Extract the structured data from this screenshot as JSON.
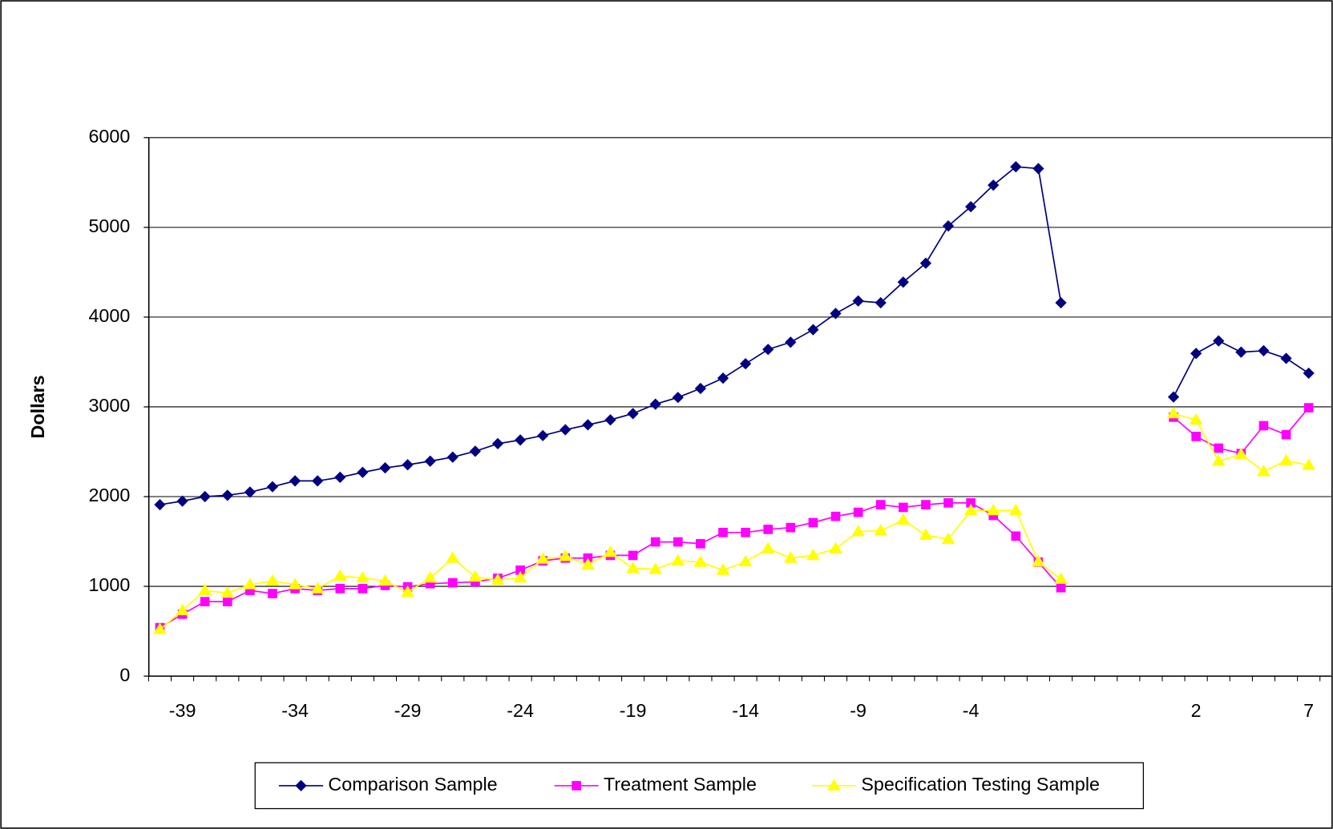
{
  "chart_data": {
    "type": "line",
    "y_label": "Dollars",
    "categories": [
      null,
      -39,
      null,
      null,
      null,
      null,
      -34,
      null,
      null,
      null,
      null,
      -29,
      null,
      null,
      null,
      null,
      -24,
      null,
      null,
      null,
      null,
      -19,
      null,
      null,
      null,
      null,
      -14,
      null,
      null,
      null,
      null,
      -9,
      null,
      null,
      null,
      null,
      -4,
      null,
      null,
      null,
      null,
      null,
      null,
      null,
      null,
      null,
      2,
      null,
      null,
      null,
      null,
      7
    ],
    "series": [
      {
        "name": "Comparison Sample",
        "color": "#000080",
        "marker": "diamond",
        "values": [
          1910,
          1950,
          2000,
          2015,
          2050,
          2110,
          2175,
          2175,
          2215,
          2270,
          2320,
          2355,
          2395,
          2440,
          2505,
          2590,
          2630,
          2680,
          2745,
          2800,
          2855,
          2925,
          3030,
          3105,
          3205,
          3320,
          3480,
          3640,
          3720,
          3860,
          4040,
          4180,
          4160,
          4390,
          4600,
          5015,
          5230,
          5470,
          5675,
          5655,
          4160,
          null,
          null,
          null,
          null,
          3110,
          3595,
          3735,
          3610,
          3625,
          3540,
          3375
        ]
      },
      {
        "name": "Treatment Sample",
        "color": "#ff00ff",
        "marker": "square",
        "values": [
          540,
          690,
          830,
          830,
          955,
          920,
          975,
          955,
          975,
          975,
          1010,
          995,
          1030,
          1040,
          1050,
          1090,
          1180,
          1285,
          1315,
          1315,
          1345,
          1345,
          1495,
          1495,
          1475,
          1600,
          1600,
          1635,
          1655,
          1710,
          1780,
          1825,
          1910,
          1880,
          1910,
          1930,
          1930,
          1790,
          1560,
          1270,
          985,
          null,
          null,
          null,
          null,
          2885,
          2670,
          2540,
          2480,
          2790,
          2690,
          2990
        ]
      },
      {
        "name": "Specification Testing Sample",
        "color": "#ffff00",
        "marker": "triangle",
        "values": [
          520,
          730,
          955,
          925,
          1020,
          1060,
          1020,
          975,
          1115,
          1095,
          1060,
          935,
          1095,
          1315,
          1105,
          1070,
          1095,
          1305,
          1335,
          1240,
          1380,
          1200,
          1190,
          1285,
          1270,
          1180,
          1275,
          1420,
          1315,
          1345,
          1420,
          1610,
          1620,
          1740,
          1570,
          1525,
          1845,
          1845,
          1845,
          1275,
          1080,
          null,
          null,
          null,
          null,
          2925,
          2855,
          2395,
          2470,
          2280,
          2400,
          2350
        ]
      }
    ],
    "ylim": [
      0,
      6000
    ],
    "yticks": [
      0,
      1000,
      2000,
      3000,
      4000,
      5000,
      6000
    ],
    "grid": true,
    "legend": "bottom"
  }
}
